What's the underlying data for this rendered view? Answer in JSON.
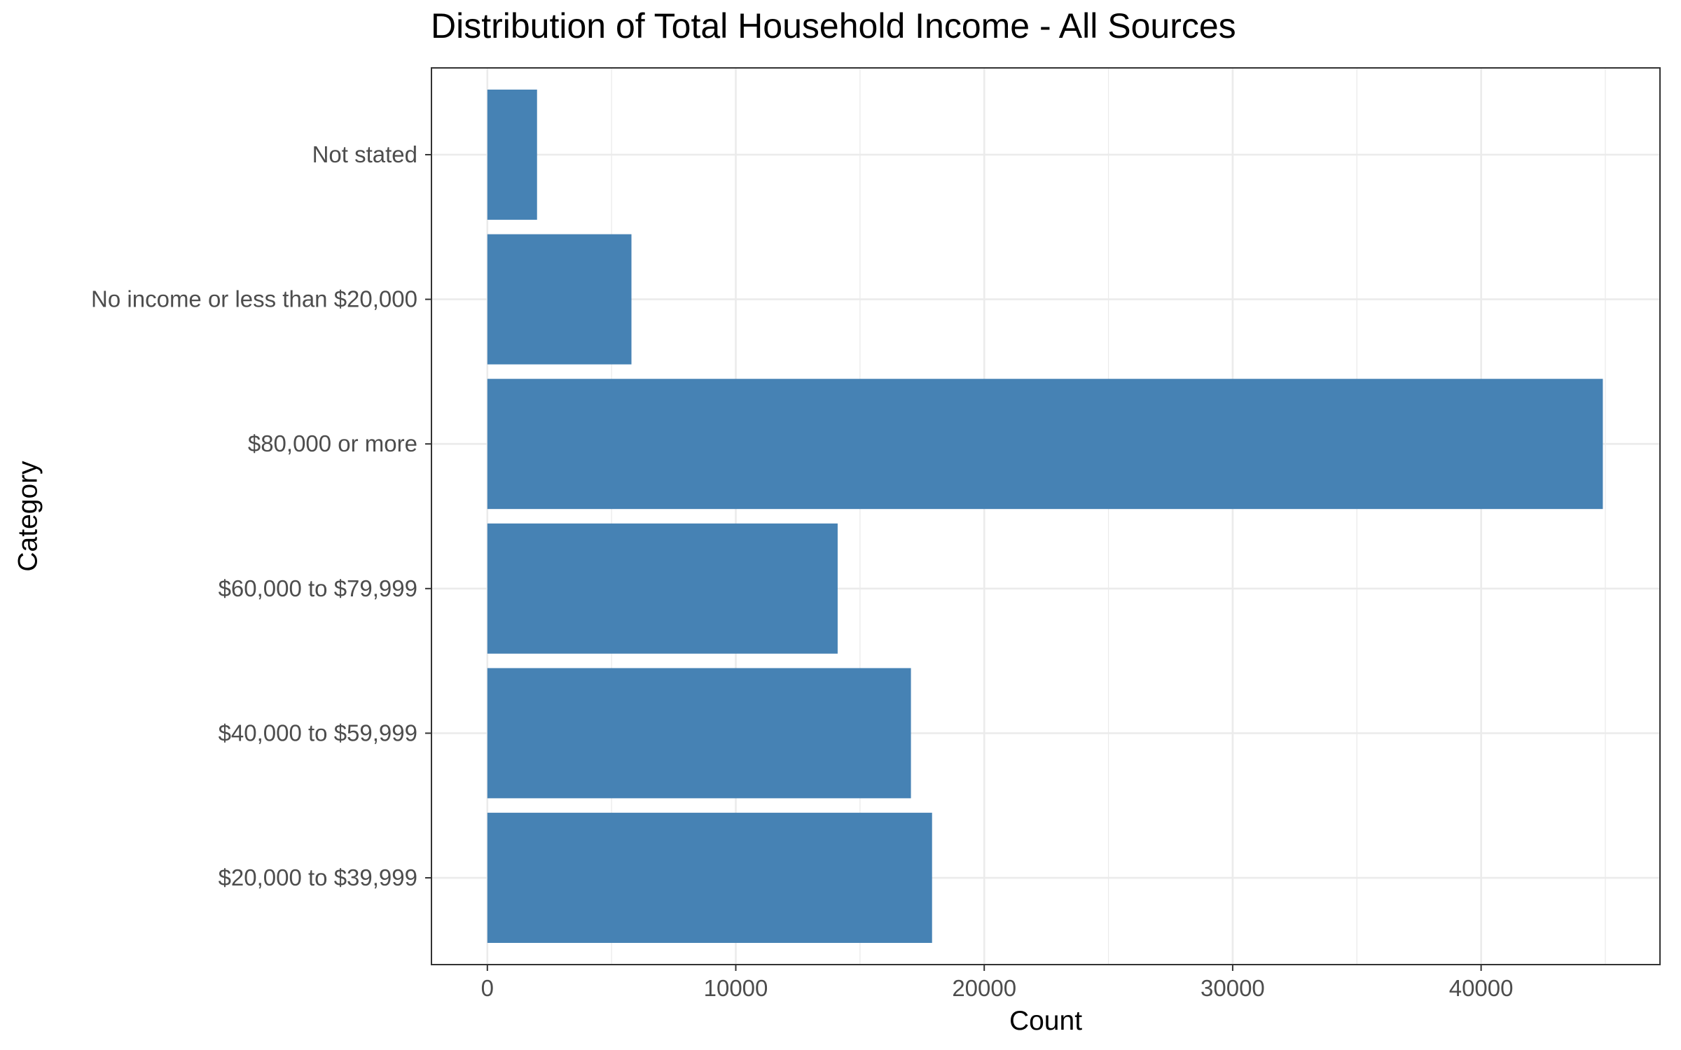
{
  "chart_data": {
    "type": "bar",
    "orientation": "horizontal",
    "title": "Distribution of Total Household Income - All Sources",
    "xlabel": "Count",
    "ylabel": "Category",
    "categories": [
      "$20,000 to $39,999",
      "$40,000 to $59,999",
      "$60,000 to $79,999",
      "$80,000 or more",
      "No income or less than $20,000",
      "Not stated"
    ],
    "values": [
      17900,
      17050,
      14100,
      44900,
      5800,
      2000
    ],
    "xlim": [
      -2250,
      47200
    ],
    "xticks": [
      0,
      10000,
      20000,
      30000,
      40000
    ],
    "xtick_labels": [
      "0",
      "10000",
      "20000",
      "30000",
      "40000"
    ],
    "bar_color": "#4682b4",
    "grid": true,
    "legend": "none"
  }
}
